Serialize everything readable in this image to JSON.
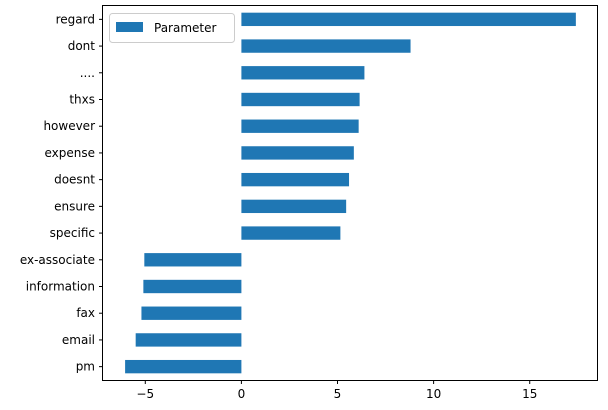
{
  "chart_data": {
    "type": "bar",
    "orientation": "horizontal",
    "categories": [
      "regard",
      "dont",
      "....",
      "thxs",
      "however",
      "expense",
      "doesnt",
      "ensure",
      "specific",
      "ex-associate",
      "information",
      "fax",
      "email",
      "pm"
    ],
    "series": [
      {
        "name": "Parameter",
        "color": "#1f77b4",
        "values": [
          17.4,
          8.8,
          6.4,
          6.15,
          6.1,
          5.85,
          5.6,
          5.45,
          5.15,
          -5.05,
          -5.1,
          -5.2,
          -5.5,
          -6.05
        ]
      }
    ],
    "title": "",
    "xlabel": "",
    "ylabel": "",
    "xlim": [
      -7.2,
      18.5
    ],
    "xticks": [
      -5,
      0,
      5,
      10,
      15
    ],
    "xtick_labels": [
      "−5",
      "0",
      "5",
      "10",
      "15"
    ],
    "grid": false,
    "legend": {
      "position": "upper-left",
      "entries": [
        "Parameter"
      ]
    }
  }
}
